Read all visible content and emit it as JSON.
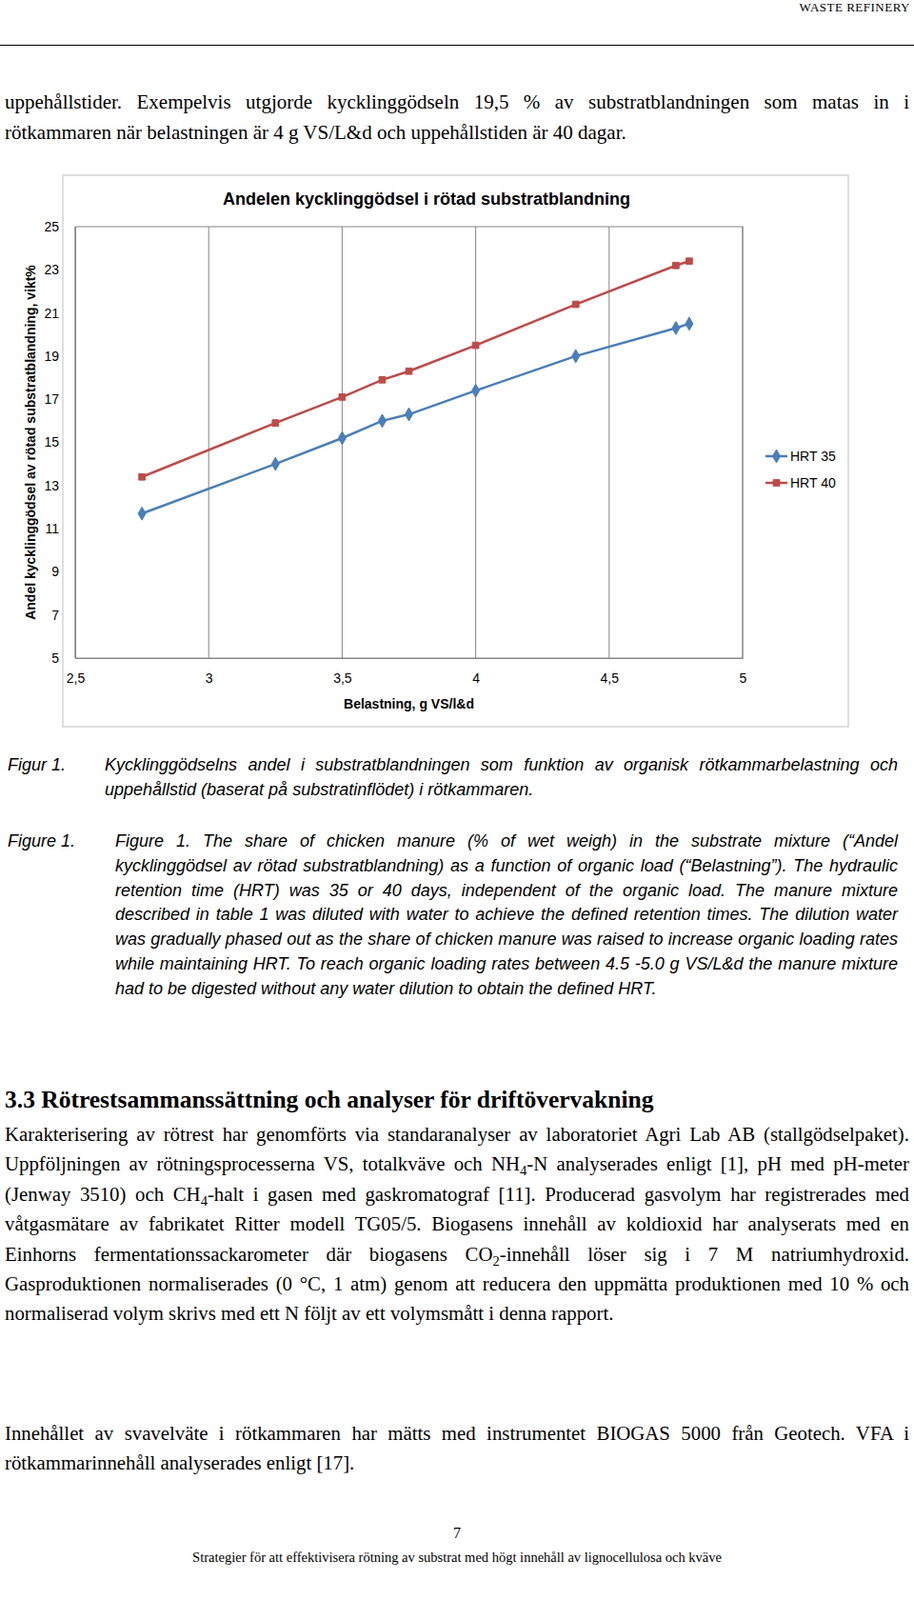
{
  "header": "WASTE REFINERY",
  "intro": "uppehållstider. Exempelvis utgjorde kycklinggödseln 19,5 % av substratblandningen som matas in i rötkammaren när belastningen är 4 g VS/L&d och uppehållstiden är 40 dagar.",
  "chart_data": {
    "type": "line",
    "title": "Andelen kycklinggödsel i rötad substratblandning",
    "x_label": "Belastning, g VS/l&d",
    "y_label": "Andel kycklinggödsel av rötad substratblandning, vikt%",
    "x": [
      2.75,
      3.25,
      3.5,
      3.65,
      3.75,
      4.0,
      4.375,
      4.75,
      4.8
    ],
    "series": [
      {
        "name": "HRT 35",
        "color": "#4a7ebb",
        "marker": "diamond",
        "values": [
          11.7,
          14.0,
          15.2,
          16.0,
          16.3,
          17.4,
          19.0,
          20.3,
          20.5
        ]
      },
      {
        "name": "HRT 40",
        "color": "#be4b48",
        "marker": "square",
        "values": [
          13.4,
          15.9,
          17.1,
          17.9,
          18.3,
          19.5,
          21.4,
          23.2,
          23.4
        ]
      }
    ],
    "xlim": [
      2.5,
      5
    ],
    "xticks": [
      {
        "value": 2.5,
        "label": "2,5"
      },
      3,
      {
        "value": 3.5,
        "label": "3,5"
      },
      4,
      {
        "value": 4.5,
        "label": "4,5"
      },
      5
    ],
    "ylim": [
      5,
      25
    ],
    "yticks": [
      5,
      7,
      9,
      11,
      13,
      15,
      17,
      19,
      21,
      23,
      25
    ],
    "grid": "x",
    "legend": "right"
  },
  "caption_sv": {
    "label": "Figur 1.",
    "text": "Kycklinggödselns andel i substratblandningen som funktion av organisk rötkammarbelastning och uppehållstid (baserat på substratinflödet) i rötkammaren."
  },
  "caption_en": {
    "label": "Figure 1.",
    "text": "Figure 1. The share of chicken manure (% of wet weigh) in the substrate mixture (“Andel kycklinggödsel av rötad substratblandning) as a function of organic load (“Belastning”). The hydraulic retention time (HRT) was 35 or 40 days, independent of the organic load. The manure mixture described in table 1 was diluted with water to achieve the defined retention times. The dilution water was gradually phased out as the share of chicken manure was raised to increase organic loading rates while maintaining HRT. To reach organic loading rates between 4.5 -5.0 g VS/L&d the manure mixture had to be digested without any water dilution to obtain the defined HRT."
  },
  "section": {
    "heading": "3.3 Rötrestsammanssättning och analyser för driftövervakning",
    "paragraphs": [
      [
        "Karakterisering av rötrest har genomförts via standaranalyser av laboratoriet Agri Lab AB (stallgödselpaket). Uppföljningen av rötningsprocesserna VS, totalkväve och NH",
        {
          "sub": "4"
        },
        "-N analyserades enligt [1], pH med pH-meter (Jenway 3510) och CH",
        {
          "sub": "4"
        },
        "-halt i gasen med gaskromatograf [11]. Producerad gasvolym har registrerades med våtgasmätare av fabrikatet Ritter modell TG05/5. Biogasens innehåll av koldioxid har analyserats med en Einhorns fermentationssackarometer där biogasens CO",
        {
          "sub": "2"
        },
        "-innehåll löser sig i 7 M natriumhydroxid. Gasproduktionen normaliserades (0 °C, 1 atm) genom att reducera den uppmätta produktionen med 10 % och normaliserad volym skrivs med ett N följt av ett volymsmått i denna rapport."
      ],
      [
        "Innehållet av svavelväte i rötkammaren har mätts med instrumentet BIOGAS 5000 från Geotech. VFA i rötkammarinnehåll analyserades enligt [17]."
      ]
    ]
  },
  "page_number": 7,
  "footer": "Strategier för att effektivisera rötning av substrat med högt innehåll av lignocellulosa och kväve"
}
